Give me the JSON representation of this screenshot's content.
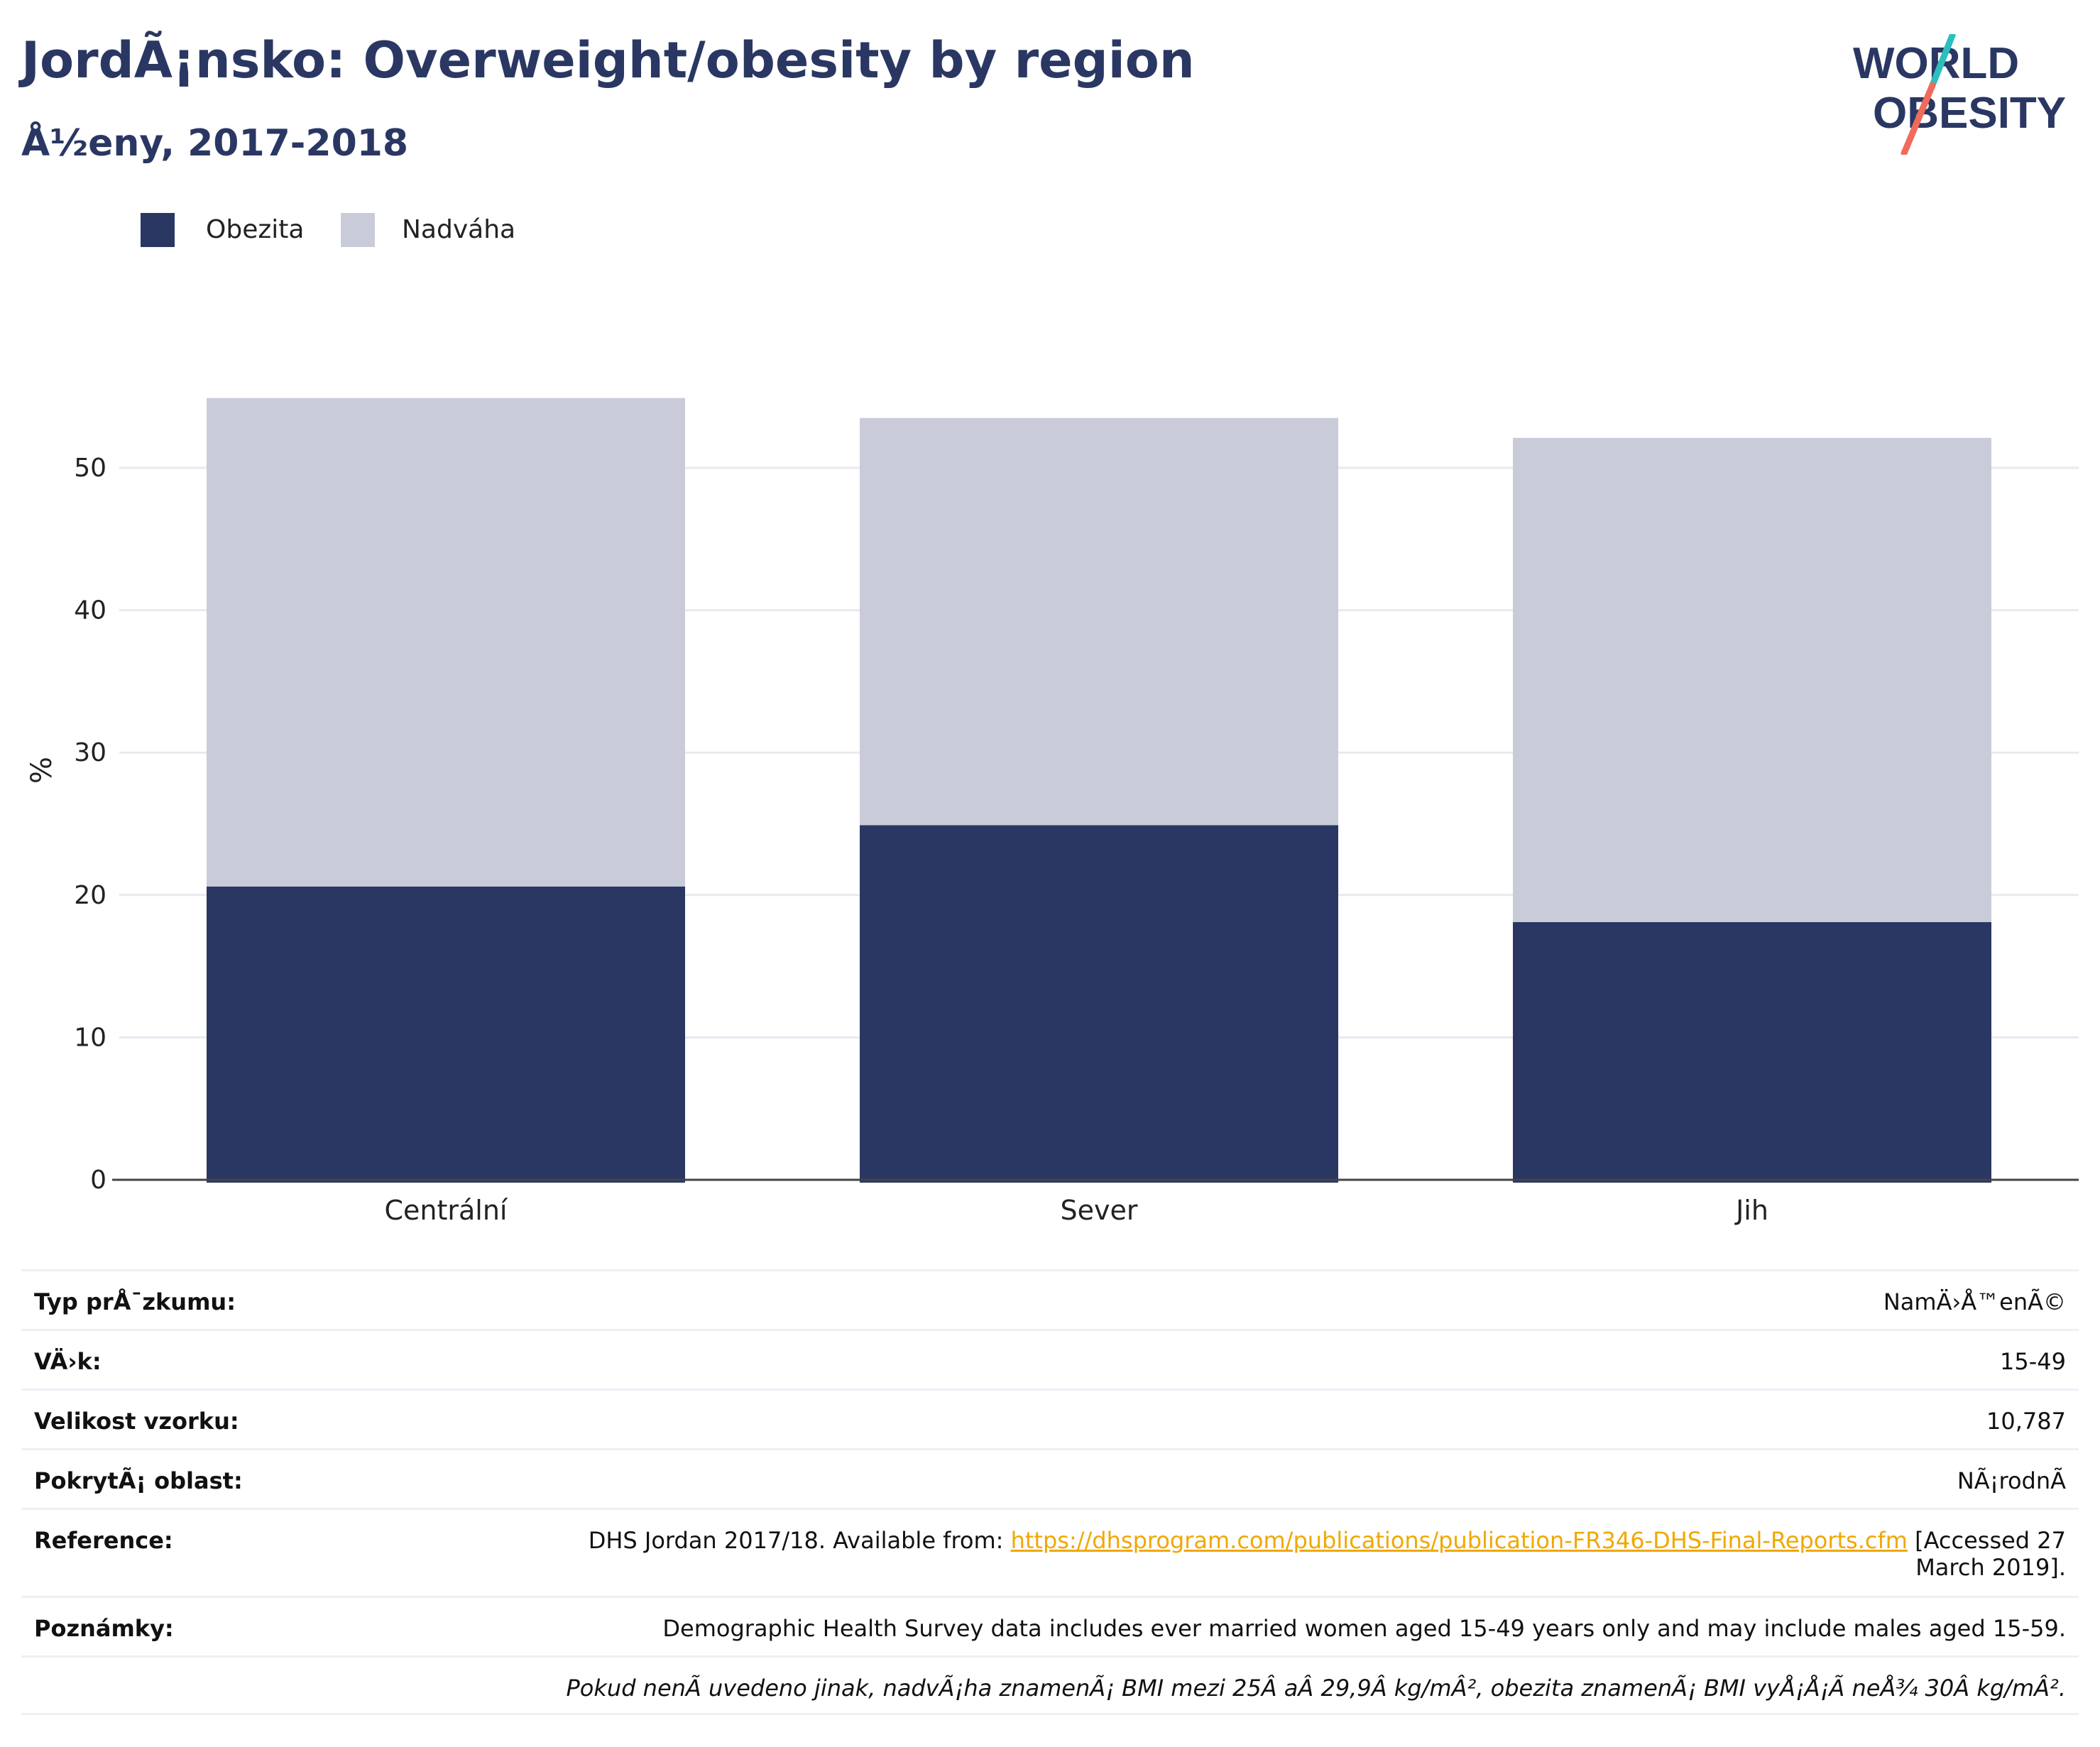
{
  "header": {
    "title": "JordÃ¡nsko: Overweight/obesity by region",
    "subtitle": "Å½eny, 2017-2018"
  },
  "logo": {
    "line1": "WORLD",
    "line2": "OBESITY",
    "colors": {
      "text": "#2a3763",
      "slash_top": "#2bbfbf",
      "slash_bottom": "#f06b5b"
    }
  },
  "legend": [
    {
      "label": "Obezita",
      "color": "#2a3763"
    },
    {
      "label": "Nadváha",
      "color": "#c9ccd8"
    }
  ],
  "chart_data": {
    "type": "bar",
    "stacked": true,
    "categories": [
      "Centrální",
      "Sever",
      "Jih"
    ],
    "series": [
      {
        "name": "Obezita",
        "values": [
          20.6,
          24.9,
          18.1
        ],
        "color": "#2a3763"
      },
      {
        "name": "Nadváha",
        "values": [
          34.3,
          28.6,
          34.0
        ],
        "color": "#c9ccd8"
      }
    ],
    "ylabel": "%",
    "xlabel": "",
    "ylim": [
      0,
      60
    ],
    "yticks": [
      0,
      10,
      20,
      30,
      40,
      50
    ],
    "grid": true,
    "legend_position": "top-left"
  },
  "info": [
    {
      "label": "Typ prÅ¯zkumu:",
      "value": "NamÄ›Å™enÃ©"
    },
    {
      "label": "VÄ›k:",
      "value": "15-49"
    },
    {
      "label": "Velikost vzorku:",
      "value": "10,787"
    },
    {
      "label": "PokrytÃ¡ oblast:",
      "value": "NÃ¡rodnÃ"
    },
    {
      "label": "Reference:",
      "value_prefix": "DHS Jordan 2017/18. Available from: ",
      "link": "https://dhsprogram.com/publications/publication-FR346-DHS-Final-Reports.cfm",
      "value_suffix_1": " [Accessed 27",
      "value_suffix_2": "March 2019]."
    },
    {
      "label": "Poznámky:",
      "value": "Demographic Health Survey data includes ever married women aged 15-49 years only and may include males aged 15-59."
    },
    {
      "label": "",
      "value": "Pokud nenÃ uvedeno jinak, nadvÃ¡ha znamenÃ¡ BMI mezi 25Â aÂ 29,9Â kg/mÂ², obezita znamenÃ¡ BMI vyÅ¡Å¡Ã neÅ¾ 30Â kg/mÂ²."
    }
  ]
}
